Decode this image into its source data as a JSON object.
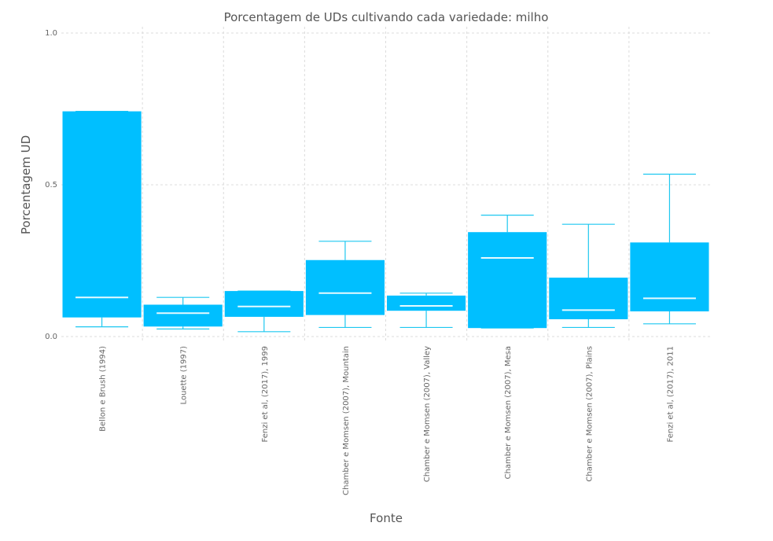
{
  "chart_data": {
    "type": "box",
    "title": "Porcentagem de UDs cultivando cada variedade: milho",
    "xlabel": "Fonte",
    "ylabel": "Porcentagem UD",
    "ylim": [
      0,
      1.0
    ],
    "yticks": [
      "0.0",
      "0.5",
      "1.0"
    ],
    "grid": true,
    "colors": {
      "box": "#00bfff",
      "whisker": "#1ec8f0",
      "median": "#e6faff",
      "grid": "#dcdcdc",
      "text": "#555555"
    },
    "categories": [
      "Bellon e Brush (1994)",
      "Louette (1997)",
      "Fenzi et al, (2017), 1999",
      "Chamber e Momsen (2007), Mountain",
      "Chamber e Momsen (2007), Valley",
      "Chamber e Momsen (2007), Mesa",
      "Chamber e Momsen (2007), Plains",
      "Fenzi et al, (2017), 2011"
    ],
    "boxes": [
      {
        "min": 0.032,
        "q1": 0.063,
        "median": 0.129,
        "q3": 0.742,
        "max": 0.742
      },
      {
        "min": 0.025,
        "q1": 0.033,
        "median": 0.077,
        "q3": 0.105,
        "max": 0.129
      },
      {
        "min": 0.016,
        "q1": 0.065,
        "median": 0.099,
        "q3": 0.15,
        "max": 0.15
      },
      {
        "min": 0.03,
        "q1": 0.071,
        "median": 0.143,
        "q3": 0.252,
        "max": 0.314
      },
      {
        "min": 0.03,
        "q1": 0.085,
        "median": 0.101,
        "q3": 0.135,
        "max": 0.143
      },
      {
        "min": 0.028,
        "q1": 0.028,
        "median": 0.259,
        "q3": 0.344,
        "max": 0.4
      },
      {
        "min": 0.03,
        "q1": 0.057,
        "median": 0.087,
        "q3": 0.194,
        "max": 0.37
      },
      {
        "min": 0.042,
        "q1": 0.083,
        "median": 0.126,
        "q3": 0.31,
        "max": 0.535
      }
    ]
  }
}
